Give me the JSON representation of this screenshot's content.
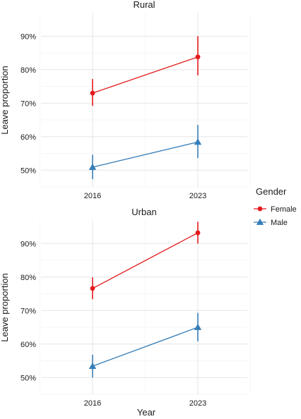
{
  "chart_data": {
    "type": "line",
    "facet_by": "Location",
    "x_categories": [
      "2016",
      "2023"
    ],
    "xlabel": "Year",
    "ylabel": "Leave proportion",
    "y_ticks": [
      50,
      60,
      70,
      80,
      90
    ],
    "y_tick_format": "%",
    "grid": true,
    "legend": {
      "title": "Gender",
      "placement": "right",
      "entries": [
        {
          "name": "Female",
          "color": "#e41a1c",
          "marker": "circle"
        },
        {
          "name": "Male",
          "color": "#377eb8",
          "marker": "triangle"
        }
      ]
    },
    "panels": [
      {
        "title": "Rural",
        "ylim": [
          45,
          97
        ],
        "series": [
          {
            "name": "Female",
            "values": [
              73.0,
              83.8
            ],
            "ci_low": [
              69.2,
              78.3
            ],
            "ci_high": [
              77.2,
              90.0
            ]
          },
          {
            "name": "Male",
            "values": [
              50.9,
              58.4
            ],
            "ci_low": [
              47.3,
              53.6
            ],
            "ci_high": [
              54.6,
              63.5
            ]
          }
        ]
      },
      {
        "title": "Urban",
        "ylim": [
          45,
          97
        ],
        "series": [
          {
            "name": "Female",
            "values": [
              76.6,
              93.2
            ],
            "ci_low": [
              73.4,
              90.0
            ],
            "ci_high": [
              79.9,
              96.5
            ]
          },
          {
            "name": "Male",
            "values": [
              53.4,
              65.0
            ],
            "ci_low": [
              50.0,
              60.8
            ],
            "ci_high": [
              56.8,
              69.3
            ]
          }
        ]
      }
    ]
  }
}
